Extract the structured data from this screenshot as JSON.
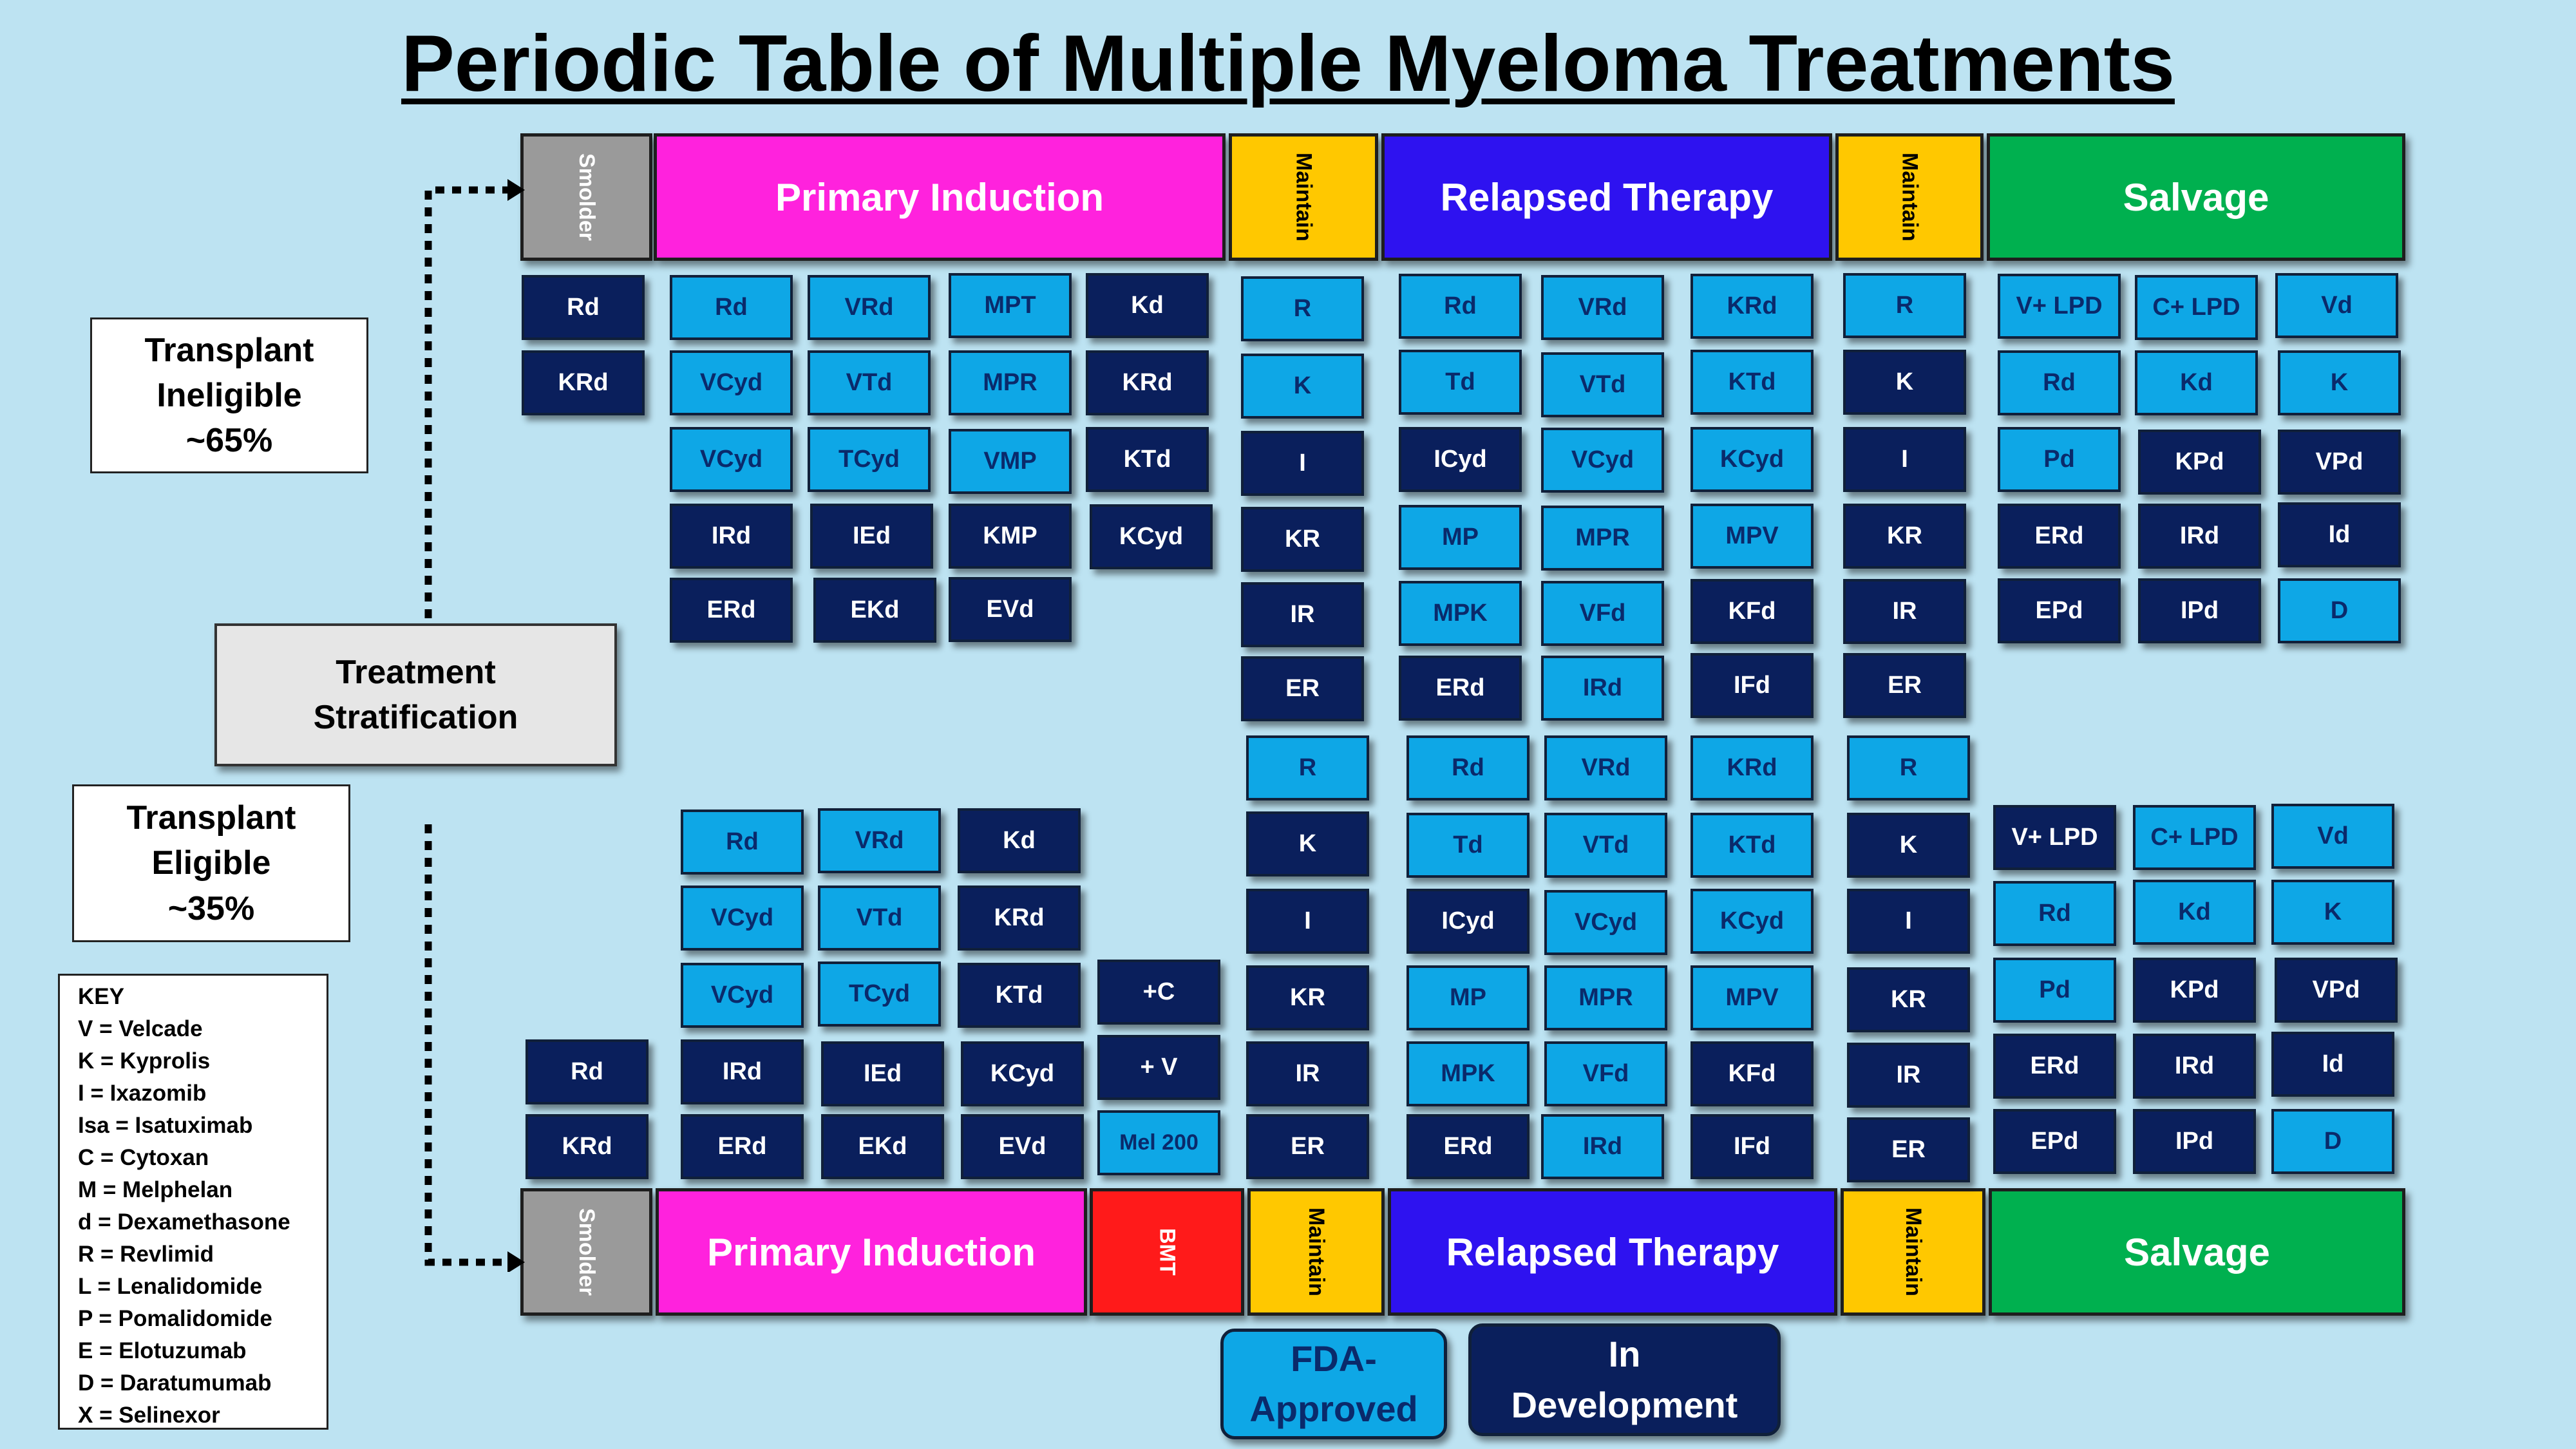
{
  "title": "Periodic Table of Multiple Myeloma Treatments",
  "colors": {
    "fda_approved": "#0ea7e6",
    "in_development": "#0a1f5c",
    "smolder": "#9a9a9a",
    "primary_induction": "#ff22dd",
    "maintain": "#ffc800",
    "relapsed_therapy": "#2e12f0",
    "salvage": "#00b04f",
    "bmt": "#ff1a1a",
    "background": "#bde3f2"
  },
  "headers_top": {
    "smolder": "Smolder",
    "primary_induction": "Primary Induction",
    "maintain_1": "Maintain",
    "relapsed_therapy": "Relapsed Therapy",
    "maintain_2": "Maintain",
    "salvage": "Salvage"
  },
  "headers_bottom": {
    "smolder": "Smolder",
    "primary_induction": "Primary Induction",
    "bmt": "BMT",
    "maintain_1": "Maintain",
    "relapsed_therapy": "Relapsed Therapy",
    "maintain_2": "Maintain",
    "salvage": "Salvage"
  },
  "transplant_ineligible": {
    "line1": "Transplant",
    "line2": "Ineligible",
    "line3": "~65%"
  },
  "transplant_eligible": {
    "line1": "Transplant",
    "line2": "Eligible",
    "line3": "~35%"
  },
  "stratification": {
    "line1": "Treatment",
    "line2": "Stratification"
  },
  "key": {
    "title": "KEY",
    "items": [
      "V = Velcade",
      "K = Kyprolis",
      "I = Ixazomib",
      "Isa = Isatuximab",
      "C = Cytoxan",
      "M = Melphelan",
      "d = Dexamethasone",
      "R = Revlimid",
      "L = Lenalidomide",
      "P = Pomalidomide",
      "E = Elotuzumab",
      "D = Daratumumab",
      "X = Selinexor"
    ]
  },
  "legend": {
    "fda_line1": "FDA-",
    "fda_line2": "Approved",
    "dev_line1": "In",
    "dev_line2": "Development"
  },
  "tiles": [
    {
      "label": "Rd",
      "status": "dev"
    },
    {
      "label": "KRd",
      "status": "dev"
    },
    {
      "label": "Rd",
      "status": "fda"
    },
    {
      "label": "VCyd",
      "status": "fda"
    },
    {
      "label": "VCyd",
      "status": "fda"
    },
    {
      "label": "IRd",
      "status": "dev"
    },
    {
      "label": "ERd",
      "status": "dev"
    },
    {
      "label": "VRd",
      "status": "fda"
    },
    {
      "label": "VTd",
      "status": "fda"
    },
    {
      "label": "TCyd",
      "status": "fda"
    },
    {
      "label": "IEd",
      "status": "dev"
    },
    {
      "label": "EKd",
      "status": "dev"
    },
    {
      "label": "MPT",
      "status": "fda"
    },
    {
      "label": "MPR",
      "status": "fda"
    },
    {
      "label": "VMP",
      "status": "fda"
    },
    {
      "label": "KMP",
      "status": "dev"
    },
    {
      "label": "EVd",
      "status": "dev"
    },
    {
      "label": "Kd",
      "status": "dev"
    },
    {
      "label": "KRd",
      "status": "dev"
    },
    {
      "label": "KTd",
      "status": "dev"
    },
    {
      "label": "KCyd",
      "status": "dev"
    },
    {
      "label": "R",
      "status": "fda"
    },
    {
      "label": "K",
      "status": "fda"
    },
    {
      "label": "I",
      "status": "dev"
    },
    {
      "label": "KR",
      "status": "dev"
    },
    {
      "label": "IR",
      "status": "dev"
    },
    {
      "label": "ER",
      "status": "dev"
    },
    {
      "label": "Rd",
      "status": "fda"
    },
    {
      "label": "Td",
      "status": "fda"
    },
    {
      "label": "ICyd",
      "status": "dev"
    },
    {
      "label": "MP",
      "status": "fda"
    },
    {
      "label": "MPK",
      "status": "fda"
    },
    {
      "label": "ERd",
      "status": "dev"
    },
    {
      "label": "VRd",
      "status": "fda"
    },
    {
      "label": "VTd",
      "status": "fda"
    },
    {
      "label": "VCyd",
      "status": "fda"
    },
    {
      "label": "MPR",
      "status": "fda"
    },
    {
      "label": "VFd",
      "status": "fda"
    },
    {
      "label": "IRd",
      "status": "fda"
    },
    {
      "label": "KRd",
      "status": "fda"
    },
    {
      "label": "KTd",
      "status": "fda"
    },
    {
      "label": "KCyd",
      "status": "fda"
    },
    {
      "label": "MPV",
      "status": "fda"
    },
    {
      "label": "KFd",
      "status": "dev"
    },
    {
      "label": "IFd",
      "status": "dev"
    },
    {
      "label": "R",
      "status": "fda"
    },
    {
      "label": "K",
      "status": "dev"
    },
    {
      "label": "I",
      "status": "dev"
    },
    {
      "label": "KR",
      "status": "dev"
    },
    {
      "label": "IR",
      "status": "dev"
    },
    {
      "label": "ER",
      "status": "dev"
    },
    {
      "label": "V+ LPD",
      "status": "fda"
    },
    {
      "label": "Rd",
      "status": "fda"
    },
    {
      "label": "Pd",
      "status": "fda"
    },
    {
      "label": "ERd",
      "status": "dev"
    },
    {
      "label": "EPd",
      "status": "dev"
    },
    {
      "label": "C+ LPD",
      "status": "fda"
    },
    {
      "label": "Kd",
      "status": "fda"
    },
    {
      "label": "KPd",
      "status": "dev"
    },
    {
      "label": "IRd",
      "status": "dev"
    },
    {
      "label": "IPd",
      "status": "dev"
    },
    {
      "label": "Vd",
      "status": "fda"
    },
    {
      "label": "K",
      "status": "fda"
    },
    {
      "label": "VPd",
      "status": "dev"
    },
    {
      "label": "Id",
      "status": "dev"
    },
    {
      "label": "D",
      "status": "fda"
    },
    {
      "label": "Rd",
      "status": "dev"
    },
    {
      "label": "KRd",
      "status": "dev"
    },
    {
      "label": "Rd",
      "status": "fda"
    },
    {
      "label": "VCyd",
      "status": "fda"
    },
    {
      "label": "VCyd",
      "status": "fda"
    },
    {
      "label": "IRd",
      "status": "dev"
    },
    {
      "label": "ERd",
      "status": "dev"
    },
    {
      "label": "VRd",
      "status": "fda"
    },
    {
      "label": "VTd",
      "status": "fda"
    },
    {
      "label": "TCyd",
      "status": "fda"
    },
    {
      "label": "IEd",
      "status": "dev"
    },
    {
      "label": "EKd",
      "status": "dev"
    },
    {
      "label": "Kd",
      "status": "dev"
    },
    {
      "label": "KRd",
      "status": "dev"
    },
    {
      "label": "KTd",
      "status": "dev"
    },
    {
      "label": "KCyd",
      "status": "dev"
    },
    {
      "label": "EVd",
      "status": "dev"
    },
    {
      "label": "+C",
      "status": "dev"
    },
    {
      "label": "+ V",
      "status": "dev"
    },
    {
      "label": "Mel 200",
      "status": "fda"
    },
    {
      "label": "R",
      "status": "fda"
    },
    {
      "label": "K",
      "status": "dev"
    },
    {
      "label": "I",
      "status": "dev"
    },
    {
      "label": "KR",
      "status": "dev"
    },
    {
      "label": "IR",
      "status": "dev"
    },
    {
      "label": "ER",
      "status": "dev"
    },
    {
      "label": "Rd",
      "status": "fda"
    },
    {
      "label": "Td",
      "status": "fda"
    },
    {
      "label": "ICyd",
      "status": "dev"
    },
    {
      "label": "MP",
      "status": "fda"
    },
    {
      "label": "MPK",
      "status": "fda"
    },
    {
      "label": "ERd",
      "status": "dev"
    },
    {
      "label": "VRd",
      "status": "fda"
    },
    {
      "label": "VTd",
      "status": "fda"
    },
    {
      "label": "VCyd",
      "status": "fda"
    },
    {
      "label": "MPR",
      "status": "fda"
    },
    {
      "label": "VFd",
      "status": "fda"
    },
    {
      "label": "IRd",
      "status": "fda"
    },
    {
      "label": "KRd",
      "status": "fda"
    },
    {
      "label": "KTd",
      "status": "fda"
    },
    {
      "label": "KCyd",
      "status": "fda"
    },
    {
      "label": "MPV",
      "status": "fda"
    },
    {
      "label": "KFd",
      "status": "dev"
    },
    {
      "label": "IFd",
      "status": "dev"
    },
    {
      "label": "R",
      "status": "fda"
    },
    {
      "label": "K",
      "status": "dev"
    },
    {
      "label": "I",
      "status": "dev"
    },
    {
      "label": "KR",
      "status": "dev"
    },
    {
      "label": "IR",
      "status": "dev"
    },
    {
      "label": "ER",
      "status": "dev"
    },
    {
      "label": "V+ LPD",
      "status": "dev"
    },
    {
      "label": "Rd",
      "status": "fda"
    },
    {
      "label": "Pd",
      "status": "fda"
    },
    {
      "label": "ERd",
      "status": "dev"
    },
    {
      "label": "EPd",
      "status": "dev"
    },
    {
      "label": "C+ LPD",
      "status": "fda"
    },
    {
      "label": "Kd",
      "status": "fda"
    },
    {
      "label": "KPd",
      "status": "dev"
    },
    {
      "label": "IRd",
      "status": "dev"
    },
    {
      "label": "IPd",
      "status": "dev"
    },
    {
      "label": "Vd",
      "status": "fda"
    },
    {
      "label": "K",
      "status": "fda"
    },
    {
      "label": "VPd",
      "status": "dev"
    },
    {
      "label": "Id",
      "status": "dev"
    },
    {
      "label": "D",
      "status": "fda"
    }
  ]
}
